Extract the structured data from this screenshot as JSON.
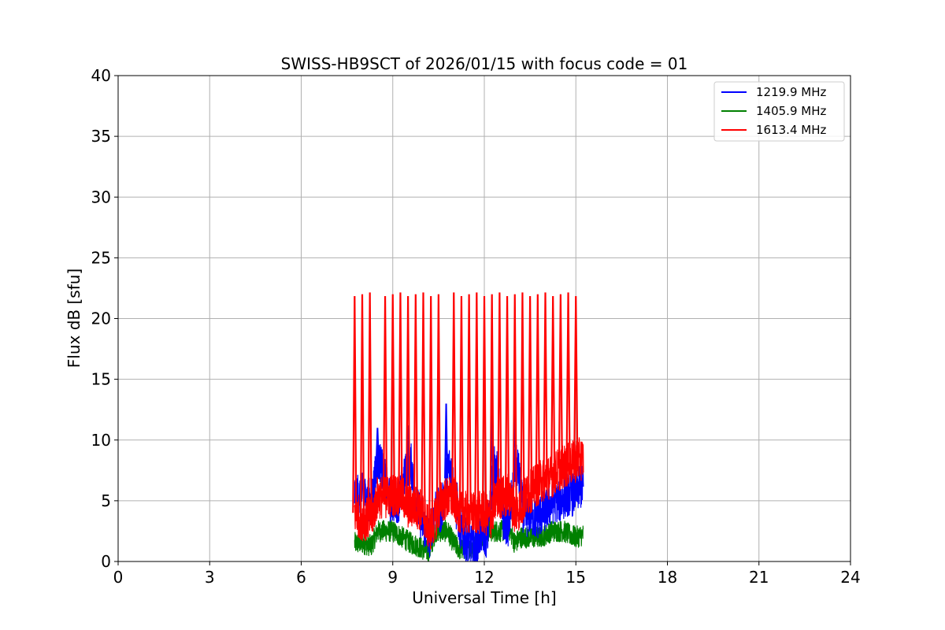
{
  "chart_data": {
    "type": "line",
    "title": "SWISS-HB9SCT of 2026/01/15 with focus code = 01",
    "xlabel": "Universal Time [h]",
    "ylabel": "Flux dB [sfu]",
    "xlim": [
      0,
      24
    ],
    "ylim": [
      0,
      40
    ],
    "xticks": [
      0,
      3,
      6,
      9,
      12,
      15,
      18,
      21,
      24
    ],
    "yticks": [
      0,
      5,
      10,
      15,
      20,
      25,
      30,
      35,
      40
    ],
    "grid": true,
    "legend_position": "top-right",
    "spikes_x": [
      7.75,
      8.0,
      8.25,
      8.75,
      9.0,
      9.25,
      9.5,
      9.75,
      10.0,
      10.25,
      10.5,
      11.0,
      11.25,
      11.5,
      11.75,
      12.0,
      12.25,
      12.5,
      12.75,
      13.0,
      13.25,
      13.5,
      13.75,
      14.0,
      14.25,
      14.5,
      14.75,
      15.0
    ],
    "series": [
      {
        "name": "1219.9 MHz",
        "color": "#0000ff",
        "x": [
          7.75,
          8.0,
          8.3,
          8.5,
          8.6,
          8.9,
          9.2,
          9.5,
          9.6,
          9.8,
          10.0,
          10.2,
          10.4,
          10.6,
          10.8,
          10.9,
          11.1,
          11.3,
          11.5,
          11.7,
          11.9,
          12.1,
          12.3,
          12.4,
          12.6,
          12.8,
          13.0,
          13.1,
          13.3,
          13.5,
          13.7,
          13.9,
          14.1,
          14.3,
          14.5,
          14.7,
          14.9,
          15.1,
          15.25
        ],
        "values": [
          5.5,
          5.5,
          5.0,
          8.2,
          8.2,
          5.0,
          5.0,
          8.0,
          8.0,
          4.5,
          3.0,
          2.0,
          4.5,
          4.0,
          7.8,
          7.8,
          4.0,
          2.0,
          1.5,
          1.0,
          2.5,
          2.0,
          7.7,
          7.7,
          3.5,
          3.0,
          7.8,
          7.8,
          3.5,
          4.0,
          3.5,
          4.0,
          4.5,
          5.0,
          5.0,
          5.5,
          5.5,
          6.0,
          6.2
        ],
        "peaks": [
          {
            "x": 8.5,
            "y": 11.0
          },
          {
            "x": 9.5,
            "y": 11.2
          },
          {
            "x": 9.2,
            "y": 6.8
          },
          {
            "x": 10.75,
            "y": 13.0
          },
          {
            "x": 11.1,
            "y": 6.5
          },
          {
            "x": 12.25,
            "y": 12.7
          },
          {
            "x": 13.0,
            "y": 12.9
          }
        ]
      },
      {
        "name": "1405.9 MHz",
        "color": "#008000",
        "x": [
          7.75,
          8.0,
          8.3,
          8.5,
          8.8,
          9.0,
          9.3,
          9.6,
          9.8,
          10.0,
          10.2,
          10.4,
          10.6,
          10.8,
          11.0,
          11.2,
          11.4,
          11.6,
          11.8,
          12.0,
          12.2,
          12.4,
          12.6,
          12.8,
          13.0,
          13.2,
          13.4,
          13.6,
          13.8,
          14.0,
          14.2,
          14.4,
          14.6,
          14.8,
          15.0,
          15.25
        ],
        "values": [
          1.5,
          1.5,
          1.3,
          2.5,
          2.5,
          2.5,
          2.0,
          1.5,
          1.3,
          1.0,
          0.8,
          2.5,
          2.5,
          2.5,
          1.5,
          1.0,
          1.0,
          1.2,
          1.5,
          2.5,
          2.5,
          2.5,
          2.5,
          2.8,
          1.5,
          2.0,
          2.0,
          2.0,
          2.0,
          2.2,
          2.5,
          2.5,
          2.5,
          2.2,
          2.0,
          2.2
        ]
      },
      {
        "name": "1613.4 MHz",
        "color": "#ff0000",
        "x": [
          7.75,
          8.0,
          8.3,
          8.5,
          8.7,
          9.0,
          9.3,
          9.5,
          9.8,
          10.0,
          10.2,
          10.4,
          10.6,
          10.8,
          11.0,
          11.2,
          11.4,
          11.6,
          11.8,
          12.0,
          12.2,
          12.4,
          12.6,
          12.8,
          13.0,
          13.2,
          13.4,
          13.6,
          13.8,
          14.0,
          14.2,
          14.4,
          14.6,
          14.8,
          15.0,
          15.25
        ],
        "values": [
          4.0,
          3.5,
          3.5,
          5.3,
          5.3,
          5.5,
          5.5,
          4.5,
          4.5,
          4.0,
          2.5,
          3.5,
          5.0,
          5.2,
          5.2,
          4.0,
          4.0,
          4.0,
          4.0,
          4.0,
          3.5,
          5.3,
          5.3,
          5.5,
          4.0,
          4.5,
          5.5,
          6.0,
          6.5,
          6.8,
          7.0,
          7.5,
          7.8,
          8.0,
          8.3,
          8.5
        ],
        "peak_level": 22.0
      }
    ]
  }
}
